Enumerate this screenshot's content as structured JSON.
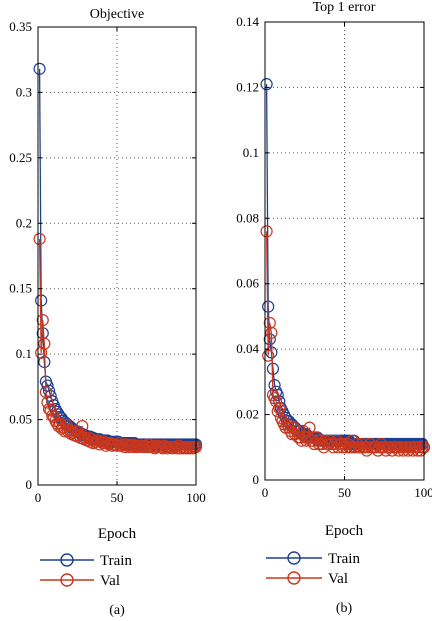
{
  "chart_data": [
    {
      "type": "line",
      "title": "Objective",
      "xlabel": "Epoch",
      "ylabel": "",
      "caption": "(a)",
      "xlim": [
        0,
        100
      ],
      "ylim": [
        0,
        0.35
      ],
      "xticks": [
        0,
        50,
        100
      ],
      "yticks": [
        0,
        0.05,
        0.1,
        0.15,
        0.2,
        0.25,
        0.3,
        0.35
      ],
      "xtick_labels": [
        "0",
        "50",
        "100"
      ],
      "ytick_labels": [
        "0",
        "0.05",
        "0.1",
        "0.15",
        "0.2",
        "0.25",
        "0.3",
        "0.35"
      ],
      "grid": true,
      "legend_position": "below-axis",
      "x": [
        1,
        2,
        3,
        4,
        5,
        6,
        7,
        8,
        9,
        10,
        11,
        12,
        13,
        14,
        15,
        16,
        17,
        18,
        19,
        20,
        21,
        22,
        23,
        24,
        25,
        26,
        27,
        28,
        29,
        30,
        31,
        32,
        33,
        34,
        35,
        36,
        37,
        38,
        39,
        40,
        41,
        42,
        43,
        44,
        45,
        46,
        47,
        48,
        49,
        50,
        51,
        52,
        53,
        54,
        55,
        56,
        57,
        58,
        59,
        60,
        61,
        62,
        63,
        64,
        65,
        66,
        67,
        68,
        69,
        70,
        71,
        72,
        73,
        74,
        75,
        76,
        77,
        78,
        79,
        80,
        81,
        82,
        83,
        84,
        85,
        86,
        87,
        88,
        89,
        90,
        91,
        92,
        93,
        94,
        95,
        96,
        97,
        98,
        99,
        100
      ],
      "series": [
        {
          "name": "Train",
          "color": "#1f3f8f",
          "values": [
            0.318,
            0.141,
            0.116,
            0.094,
            0.079,
            0.076,
            0.072,
            0.068,
            0.064,
            0.061,
            0.058,
            0.056,
            0.054,
            0.052,
            0.051,
            0.049,
            0.048,
            0.047,
            0.046,
            0.045,
            0.044,
            0.043,
            0.042,
            0.041,
            0.041,
            0.04,
            0.039,
            0.039,
            0.038,
            0.038,
            0.037,
            0.037,
            0.037,
            0.036,
            0.036,
            0.035,
            0.035,
            0.035,
            0.035,
            0.034,
            0.034,
            0.034,
            0.034,
            0.034,
            0.033,
            0.033,
            0.033,
            0.033,
            0.033,
            0.033,
            0.033,
            0.032,
            0.032,
            0.032,
            0.032,
            0.032,
            0.032,
            0.032,
            0.032,
            0.032,
            0.032,
            0.031,
            0.031,
            0.031,
            0.031,
            0.031,
            0.031,
            0.031,
            0.031,
            0.031,
            0.031,
            0.031,
            0.031,
            0.031,
            0.031,
            0.031,
            0.031,
            0.031,
            0.031,
            0.031,
            0.031,
            0.031,
            0.031,
            0.031,
            0.031,
            0.031,
            0.031,
            0.031,
            0.031,
            0.031,
            0.031,
            0.031,
            0.031,
            0.031,
            0.031,
            0.031,
            0.031,
            0.031,
            0.031,
            0.031
          ]
        },
        {
          "name": "Val",
          "color": "#c8371e",
          "values": [
            0.188,
            0.101,
            0.126,
            0.108,
            0.071,
            0.063,
            0.058,
            0.057,
            0.053,
            0.052,
            0.049,
            0.047,
            0.045,
            0.047,
            0.043,
            0.044,
            0.041,
            0.046,
            0.041,
            0.042,
            0.039,
            0.04,
            0.038,
            0.041,
            0.037,
            0.038,
            0.036,
            0.045,
            0.035,
            0.036,
            0.034,
            0.036,
            0.033,
            0.035,
            0.032,
            0.033,
            0.033,
            0.034,
            0.031,
            0.033,
            0.032,
            0.033,
            0.03,
            0.032,
            0.031,
            0.032,
            0.03,
            0.031,
            0.031,
            0.03,
            0.032,
            0.03,
            0.03,
            0.031,
            0.029,
            0.031,
            0.03,
            0.029,
            0.03,
            0.031,
            0.029,
            0.03,
            0.029,
            0.03,
            0.03,
            0.029,
            0.029,
            0.03,
            0.029,
            0.031,
            0.029,
            0.029,
            0.03,
            0.028,
            0.029,
            0.03,
            0.029,
            0.029,
            0.028,
            0.03,
            0.029,
            0.028,
            0.029,
            0.029,
            0.028,
            0.029,
            0.029,
            0.028,
            0.03,
            0.028,
            0.029,
            0.028,
            0.029,
            0.028,
            0.029,
            0.028,
            0.029,
            0.028,
            0.029,
            0.029
          ]
        }
      ]
    },
    {
      "type": "line",
      "title": "Top 1 error",
      "xlabel": "Epoch",
      "ylabel": "",
      "caption": "(b)",
      "xlim": [
        0,
        100
      ],
      "ylim": [
        0,
        0.14
      ],
      "xticks": [
        0,
        50,
        100
      ],
      "yticks": [
        0,
        0.02,
        0.04,
        0.06,
        0.08,
        0.1,
        0.12,
        0.14
      ],
      "xtick_labels": [
        "0",
        "50",
        "100"
      ],
      "ytick_labels": [
        "0",
        "0.02",
        "0.04",
        "0.06",
        "0.08",
        "0.1",
        "0.12",
        "0.14"
      ],
      "grid": true,
      "legend_position": "below-axis",
      "x": [
        1,
        2,
        3,
        4,
        5,
        6,
        7,
        8,
        9,
        10,
        11,
        12,
        13,
        14,
        15,
        16,
        17,
        18,
        19,
        20,
        21,
        22,
        23,
        24,
        25,
        26,
        27,
        28,
        29,
        30,
        31,
        32,
        33,
        34,
        35,
        36,
        37,
        38,
        39,
        40,
        41,
        42,
        43,
        44,
        45,
        46,
        47,
        48,
        49,
        50,
        51,
        52,
        53,
        54,
        55,
        56,
        57,
        58,
        59,
        60,
        61,
        62,
        63,
        64,
        65,
        66,
        67,
        68,
        69,
        70,
        71,
        72,
        73,
        74,
        75,
        76,
        77,
        78,
        79,
        80,
        81,
        82,
        83,
        84,
        85,
        86,
        87,
        88,
        89,
        90,
        91,
        92,
        93,
        94,
        95,
        96,
        97,
        98,
        99,
        100
      ],
      "series": [
        {
          "name": "Train",
          "color": "#1f3f8f",
          "values": [
            0.121,
            0.053,
            0.043,
            0.039,
            0.034,
            0.029,
            0.027,
            0.026,
            0.024,
            0.022,
            0.021,
            0.02,
            0.019,
            0.018,
            0.018,
            0.017,
            0.017,
            0.016,
            0.016,
            0.015,
            0.015,
            0.015,
            0.014,
            0.014,
            0.014,
            0.014,
            0.013,
            0.013,
            0.013,
            0.013,
            0.013,
            0.013,
            0.013,
            0.012,
            0.012,
            0.012,
            0.012,
            0.012,
            0.012,
            0.012,
            0.012,
            0.012,
            0.012,
            0.012,
            0.012,
            0.012,
            0.012,
            0.012,
            0.012,
            0.012,
            0.012,
            0.012,
            0.012,
            0.011,
            0.011,
            0.012,
            0.011,
            0.011,
            0.011,
            0.011,
            0.011,
            0.011,
            0.011,
            0.011,
            0.011,
            0.011,
            0.011,
            0.011,
            0.011,
            0.011,
            0.011,
            0.011,
            0.011,
            0.011,
            0.011,
            0.011,
            0.011,
            0.011,
            0.011,
            0.011,
            0.011,
            0.011,
            0.011,
            0.011,
            0.011,
            0.011,
            0.011,
            0.011,
            0.011,
            0.011,
            0.011,
            0.011,
            0.011,
            0.011,
            0.011,
            0.011,
            0.011,
            0.011,
            0.011,
            0.01
          ]
        },
        {
          "name": "Val",
          "color": "#c8371e",
          "values": [
            0.076,
            0.038,
            0.048,
            0.045,
            0.026,
            0.025,
            0.024,
            0.021,
            0.022,
            0.019,
            0.018,
            0.017,
            0.016,
            0.017,
            0.016,
            0.015,
            0.014,
            0.016,
            0.014,
            0.015,
            0.013,
            0.013,
            0.012,
            0.015,
            0.013,
            0.012,
            0.013,
            0.016,
            0.012,
            0.012,
            0.011,
            0.013,
            0.012,
            0.011,
            0.012,
            0.011,
            0.01,
            0.012,
            0.011,
            0.011,
            0.012,
            0.011,
            0.01,
            0.011,
            0.012,
            0.01,
            0.011,
            0.011,
            0.01,
            0.011,
            0.01,
            0.011,
            0.01,
            0.01,
            0.012,
            0.01,
            0.01,
            0.011,
            0.01,
            0.01,
            0.011,
            0.01,
            0.01,
            0.009,
            0.01,
            0.011,
            0.01,
            0.01,
            0.01,
            0.01,
            0.009,
            0.01,
            0.011,
            0.01,
            0.01,
            0.009,
            0.01,
            0.01,
            0.01,
            0.009,
            0.01,
            0.01,
            0.01,
            0.009,
            0.01,
            0.01,
            0.009,
            0.01,
            0.01,
            0.009,
            0.01,
            0.01,
            0.009,
            0.01,
            0.01,
            0.009,
            0.01,
            0.009,
            0.01,
            0.01
          ]
        }
      ]
    }
  ]
}
